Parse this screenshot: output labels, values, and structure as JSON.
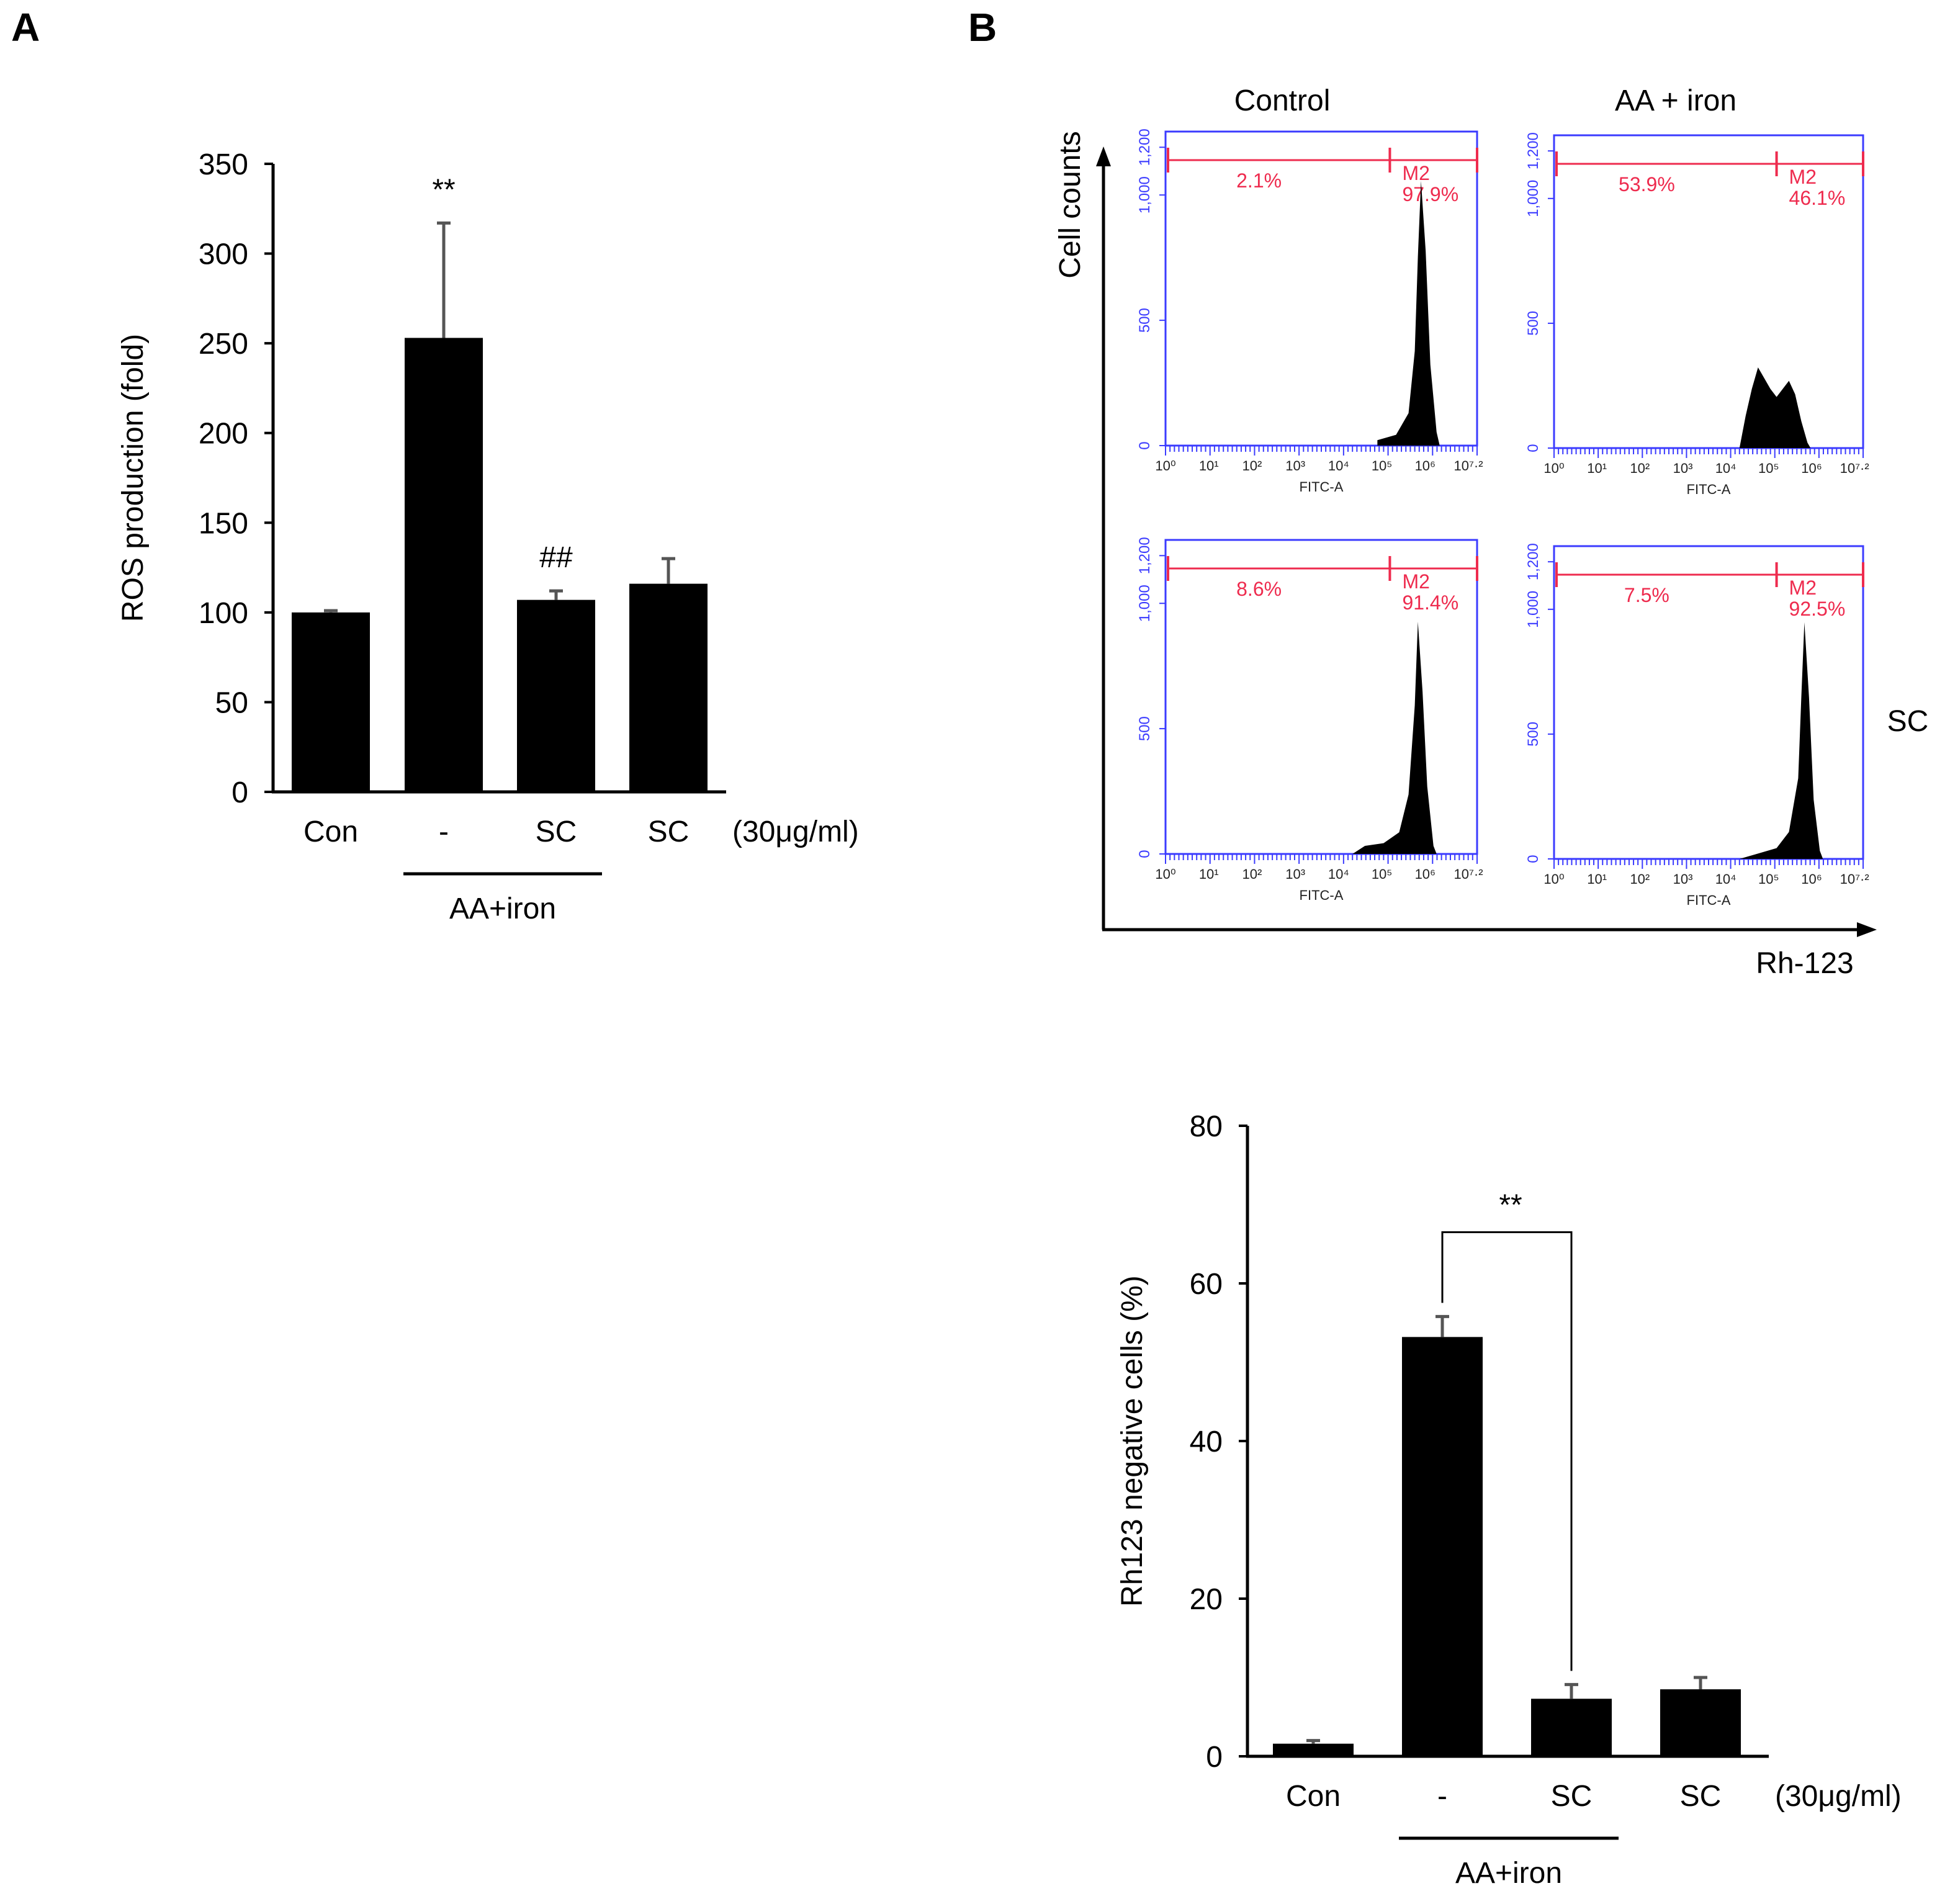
{
  "panels": {
    "a_label": "A",
    "b_label": "B"
  },
  "colors": {
    "bar": "#000000",
    "error": "#555555",
    "flow_frame": "#3b3bff",
    "gate": "#ee2b4e"
  },
  "chart_data": [
    {
      "type": "bar",
      "id": "ros",
      "ylabel": "ROS production (fold)",
      "ylim": [
        0,
        350
      ],
      "yticks": [
        0,
        50,
        100,
        150,
        200,
        250,
        300,
        350
      ],
      "categories": [
        "Con",
        "-",
        "SC",
        "SC"
      ],
      "unit_label": "(30μg/ml)",
      "group_label": "AA+iron",
      "values": [
        100,
        253,
        107,
        116
      ],
      "errors": [
        1,
        64,
        5,
        14
      ],
      "significance": [
        "",
        "**",
        "##",
        ""
      ]
    },
    {
      "type": "histogram",
      "id": "flow",
      "ylabel": "Cell counts",
      "xlabel": "Rh-123",
      "col_labels": [
        "Control",
        "AA + iron"
      ],
      "row_label": "SC",
      "x_axis_label": "FITC-A",
      "y_ticks": [
        "0",
        "500",
        "1,000",
        "1,200"
      ],
      "x_ticks": [
        "10⁰",
        "10¹",
        "10²",
        "10³",
        "10⁴",
        "10⁵",
        "10⁶",
        "10⁷·²"
      ],
      "gate_name": "M2",
      "plots": [
        {
          "left_pct": "2.1%",
          "right_pct": "97.9%"
        },
        {
          "left_pct": "53.9%",
          "right_pct": "46.1%"
        },
        {
          "left_pct": "8.6%",
          "right_pct": "91.4%"
        },
        {
          "left_pct": "7.5%",
          "right_pct": "92.5%"
        }
      ]
    },
    {
      "type": "bar",
      "id": "rh123",
      "ylabel": "Rh123 negative cells (%)",
      "ylim": [
        0,
        80
      ],
      "yticks": [
        0,
        20,
        40,
        60,
        80
      ],
      "categories": [
        "Con",
        "-",
        "SC",
        "SC"
      ],
      "unit_label": "(30μg/ml)",
      "group_label": "AA+iron",
      "values": [
        1.6,
        53.2,
        7.3,
        8.5
      ],
      "errors": [
        0.4,
        2.6,
        1.8,
        1.5
      ],
      "bracket": {
        "from": 1,
        "to": 2,
        "label": "**"
      }
    }
  ]
}
